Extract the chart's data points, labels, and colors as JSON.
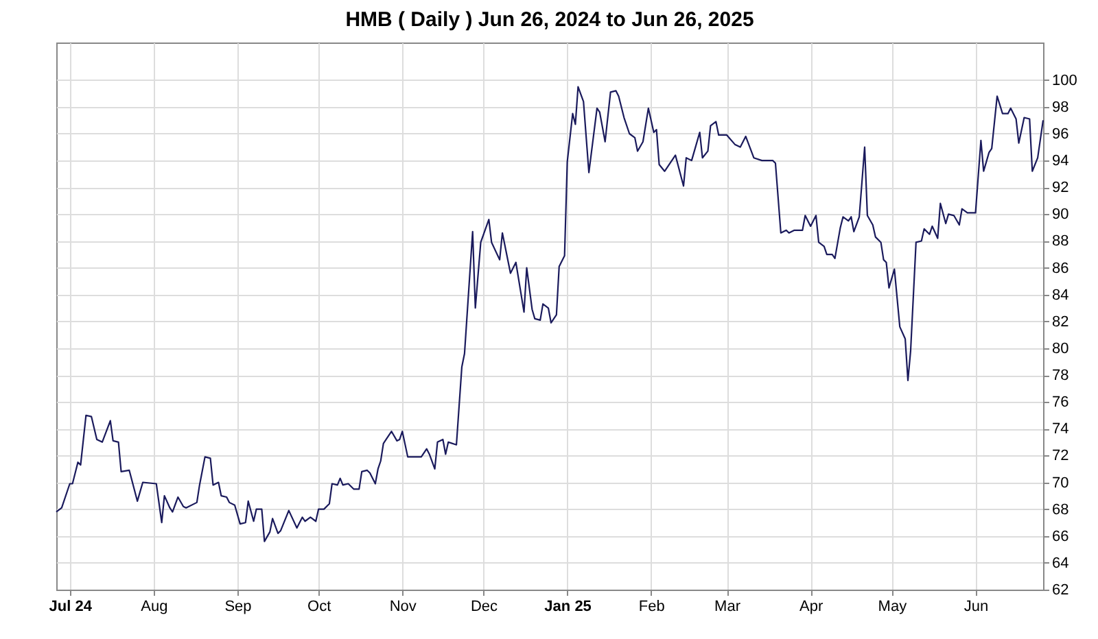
{
  "chart_data": {
    "type": "line",
    "title": "HMB ( Daily ) Jun 26, 2024 to Jun 26, 2025",
    "x": [
      "2024-06-26",
      "2024-06-28",
      "2024-07-01",
      "2024-07-02",
      "2024-07-04",
      "2024-07-05",
      "2024-07-07",
      "2024-07-09",
      "2024-07-11",
      "2024-07-13",
      "2024-07-16",
      "2024-07-17",
      "2024-07-19",
      "2024-07-20",
      "2024-07-23",
      "2024-07-26",
      "2024-07-28",
      "2024-08-02",
      "2024-08-04",
      "2024-08-05",
      "2024-08-07",
      "2024-08-08",
      "2024-08-10",
      "2024-08-12",
      "2024-08-13",
      "2024-08-17",
      "2024-08-18",
      "2024-08-20",
      "2024-08-22",
      "2024-08-23",
      "2024-08-25",
      "2024-08-26",
      "2024-08-28",
      "2024-08-29",
      "2024-08-31",
      "2024-09-02",
      "2024-09-04",
      "2024-09-05",
      "2024-09-07",
      "2024-09-08",
      "2024-09-10",
      "2024-09-11",
      "2024-09-13",
      "2024-09-14",
      "2024-09-16",
      "2024-09-17",
      "2024-09-20",
      "2024-09-23",
      "2024-09-25",
      "2024-09-26",
      "2024-09-28",
      "2024-09-30",
      "2024-10-01",
      "2024-10-03",
      "2024-10-05",
      "2024-10-06",
      "2024-10-08",
      "2024-10-09",
      "2024-10-10",
      "2024-10-12",
      "2024-10-14",
      "2024-10-16",
      "2024-10-17",
      "2024-10-19",
      "2024-10-20",
      "2024-10-22",
      "2024-10-23",
      "2024-10-24",
      "2024-10-25",
      "2024-10-26",
      "2024-10-28",
      "2024-10-30",
      "2024-10-31",
      "2024-11-01",
      "2024-11-03",
      "2024-11-08",
      "2024-11-10",
      "2024-11-11",
      "2024-11-13",
      "2024-11-14",
      "2024-11-16",
      "2024-11-17",
      "2024-11-18",
      "2024-11-21",
      "2024-11-23",
      "2024-11-24",
      "2024-11-27",
      "2024-11-28",
      "2024-11-30",
      "2024-12-03",
      "2024-12-04",
      "2024-12-07",
      "2024-12-08",
      "2024-12-11",
      "2024-12-13",
      "2024-12-16",
      "2024-12-17",
      "2024-12-19",
      "2024-12-20",
      "2024-12-22",
      "2024-12-23",
      "2024-12-25",
      "2024-12-26",
      "2024-12-28",
      "2024-12-29",
      "2024-12-31",
      "2025-01-01",
      "2025-01-03",
      "2025-01-04",
      "2025-01-05",
      "2025-01-07",
      "2025-01-09",
      "2025-01-12",
      "2025-01-13",
      "2025-01-15",
      "2025-01-17",
      "2025-01-19",
      "2025-01-20",
      "2025-01-22",
      "2025-01-24",
      "2025-01-26",
      "2025-01-27",
      "2025-01-29",
      "2025-01-31",
      "2025-02-02",
      "2025-02-03",
      "2025-02-04",
      "2025-02-06",
      "2025-02-10",
      "2025-02-13",
      "2025-02-14",
      "2025-02-16",
      "2025-02-19",
      "2025-02-20",
      "2025-02-22",
      "2025-02-23",
      "2025-02-25",
      "2025-02-26",
      "2025-03-01",
      "2025-03-04",
      "2025-03-06",
      "2025-03-08",
      "2025-03-11",
      "2025-03-14",
      "2025-03-18",
      "2025-03-19",
      "2025-03-21",
      "2025-03-23",
      "2025-03-24",
      "2025-03-26",
      "2025-03-29",
      "2025-03-30",
      "2025-04-01",
      "2025-04-03",
      "2025-04-04",
      "2025-04-06",
      "2025-04-07",
      "2025-04-09",
      "2025-04-10",
      "2025-04-12",
      "2025-04-13",
      "2025-04-15",
      "2025-04-16",
      "2025-04-17",
      "2025-04-19",
      "2025-04-21",
      "2025-04-22",
      "2025-04-24",
      "2025-04-25",
      "2025-04-27",
      "2025-04-28",
      "2025-04-29",
      "2025-04-30",
      "2025-05-02",
      "2025-05-04",
      "2025-05-06",
      "2025-05-07",
      "2025-05-08",
      "2025-05-10",
      "2025-05-12",
      "2025-05-13",
      "2025-05-15",
      "2025-05-16",
      "2025-05-18",
      "2025-05-19",
      "2025-05-21",
      "2025-05-22",
      "2025-05-24",
      "2025-05-26",
      "2025-05-27",
      "2025-05-29",
      "2025-06-01",
      "2025-06-03",
      "2025-06-04",
      "2025-06-06",
      "2025-06-07",
      "2025-06-09",
      "2025-06-11",
      "2025-06-13",
      "2025-06-14",
      "2025-06-16",
      "2025-06-17",
      "2025-06-19",
      "2025-06-21",
      "2025-06-22",
      "2025-06-24",
      "2025-06-26"
    ],
    "series": [
      {
        "color": "#1a1a5c",
        "values": [
          67.8,
          68.1,
          69.9,
          69.9,
          71.5,
          71.3,
          75.0,
          74.9,
          73.2,
          73.0,
          74.6,
          73.1,
          73.0,
          70.8,
          70.9,
          68.6,
          70.0,
          69.9,
          67.0,
          69.0,
          68.1,
          67.8,
          68.9,
          68.2,
          68.1,
          68.5,
          69.8,
          71.9,
          71.8,
          69.8,
          70.0,
          69.0,
          68.9,
          68.5,
          68.3,
          66.9,
          67.0,
          68.6,
          67.1,
          68.0,
          68.0,
          65.6,
          66.3,
          67.3,
          66.2,
          66.4,
          67.9,
          66.6,
          67.4,
          67.1,
          67.4,
          67.1,
          68.0,
          68.0,
          68.4,
          69.9,
          69.8,
          70.3,
          69.8,
          69.9,
          69.5,
          69.5,
          70.8,
          70.9,
          70.7,
          69.9,
          71.0,
          71.6,
          72.9,
          73.2,
          73.8,
          73.1,
          73.2,
          73.8,
          71.9,
          71.9,
          72.5,
          72.1,
          71.0,
          73.0,
          73.2,
          72.1,
          73.0,
          72.8,
          78.6,
          79.6,
          88.7,
          83.0,
          87.9,
          89.6,
          87.9,
          86.6,
          88.6,
          85.6,
          86.4,
          82.7,
          86.0,
          82.9,
          82.2,
          82.1,
          83.3,
          83.0,
          81.9,
          82.5,
          86.1,
          86.9,
          93.9,
          97.5,
          96.7,
          99.5,
          98.4,
          93.1,
          97.9,
          97.6,
          95.4,
          99.1,
          99.2,
          98.8,
          97.2,
          96.0,
          95.7,
          94.7,
          95.4,
          97.9,
          96.1,
          96.3,
          93.7,
          93.2,
          94.4,
          92.1,
          94.2,
          94.0,
          96.1,
          94.2,
          94.7,
          96.6,
          96.9,
          95.9,
          95.9,
          95.2,
          95.0,
          95.8,
          94.2,
          94.0,
          94.0,
          93.8,
          88.6,
          88.8,
          88.6,
          88.8,
          88.8,
          89.9,
          89.1,
          89.9,
          87.9,
          87.6,
          87.0,
          87.0,
          86.7,
          89.0,
          89.8,
          89.5,
          89.8,
          88.7,
          89.8,
          95.0,
          89.9,
          89.2,
          88.3,
          87.9,
          86.6,
          86.4,
          84.5,
          85.9,
          81.6,
          80.7,
          77.6,
          79.8,
          87.9,
          88.0,
          88.9,
          88.5,
          89.1,
          88.2,
          90.8,
          89.3,
          90.0,
          89.9,
          89.2,
          90.4,
          90.1,
          90.1,
          95.5,
          93.2,
          94.6,
          94.9,
          98.8,
          97.5,
          97.5,
          97.9,
          97.1,
          95.3,
          97.2,
          97.1,
          93.2,
          94.2,
          97.0
        ]
      }
    ],
    "xlim": [
      "2024-06-26",
      "2025-06-26"
    ],
    "xticks": [
      {
        "value": "2024-07-01",
        "label": "Jul 24"
      },
      {
        "value": "2024-08-01",
        "label": "Aug"
      },
      {
        "value": "2024-09-01",
        "label": "Sep"
      },
      {
        "value": "2024-10-01",
        "label": "Oct"
      },
      {
        "value": "2024-11-01",
        "label": "Nov"
      },
      {
        "value": "2024-12-01",
        "label": "Dec"
      },
      {
        "value": "2025-01-01",
        "label": "Jan 25"
      },
      {
        "value": "2025-02-01",
        "label": "Feb"
      },
      {
        "value": "2025-03-01",
        "label": "Mar"
      },
      {
        "value": "2025-04-01",
        "label": "Apr"
      },
      {
        "value": "2025-05-01",
        "label": "May"
      },
      {
        "value": "2025-06-01",
        "label": "Jun"
      }
    ],
    "ylim": [
      62,
      102.8
    ],
    "yticks": [
      62,
      64,
      66,
      68,
      70,
      72,
      74,
      76,
      78,
      80,
      82,
      84,
      86,
      88,
      90,
      92,
      94,
      96,
      98,
      100
    ],
    "grid": true,
    "marker": "none",
    "line_style": "solid"
  }
}
